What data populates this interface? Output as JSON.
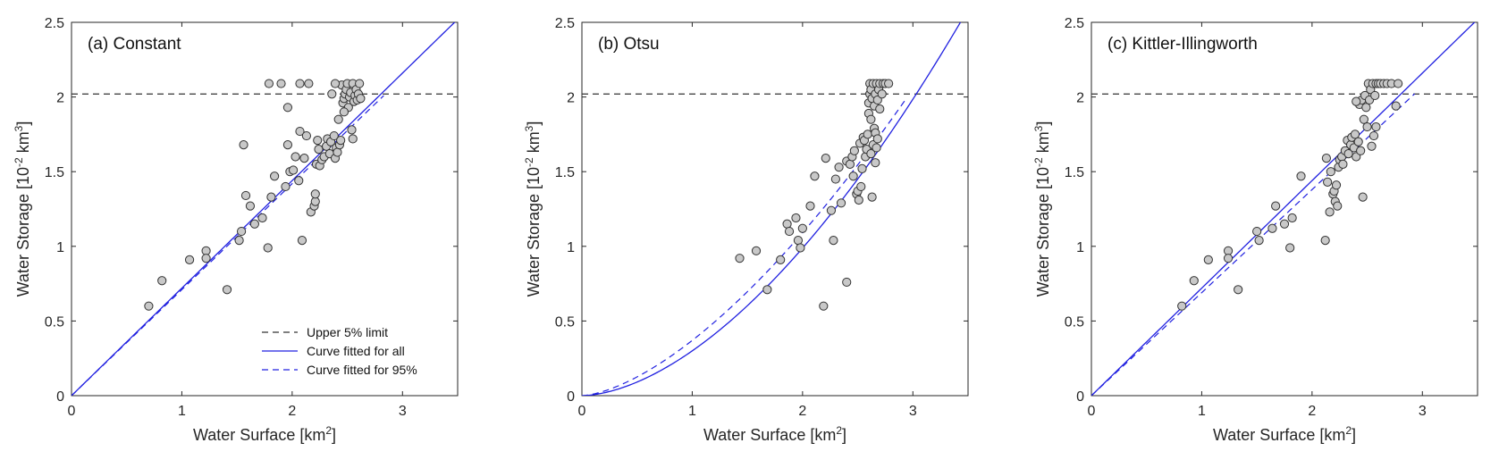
{
  "chart_data": [
    {
      "type": "scatter",
      "title": "(a) Constant",
      "xlabel": "Water Surface [km",
      "xlabel_sup": "2",
      "xlabel_end": "]",
      "ylabel": "Water Storage [10",
      "ylabel_sup": "-2",
      "ylabel_mid": " km",
      "ylabel_sup2": "3",
      "ylabel_end": "]",
      "xlim": [
        0,
        3.5
      ],
      "ylim": [
        0,
        2.5
      ],
      "xticks": [
        0,
        1,
        2,
        3
      ],
      "xtick_labels": [
        "0",
        "1",
        "2",
        "3"
      ],
      "yticks": [
        0,
        0.5,
        1,
        1.5,
        2,
        2.5
      ],
      "ytick_labels": [
        "0",
        "0.5",
        "1",
        "1.5",
        "2",
        "2.5"
      ],
      "upper_limit": 2.02,
      "fit_all": {
        "a": 0.72,
        "b": 1.0
      },
      "fit_95": {
        "a": 0.71,
        "b": 1.0,
        "xmax": 2.83
      },
      "points": [
        [
          0.7,
          0.6
        ],
        [
          0.82,
          0.77
        ],
        [
          1.07,
          0.91
        ],
        [
          1.22,
          0.97
        ],
        [
          1.22,
          0.92
        ],
        [
          1.41,
          0.71
        ],
        [
          1.52,
          1.04
        ],
        [
          1.54,
          1.1
        ],
        [
          1.56,
          1.68
        ],
        [
          1.58,
          1.34
        ],
        [
          1.62,
          1.27
        ],
        [
          1.66,
          1.15
        ],
        [
          1.73,
          1.19
        ],
        [
          1.78,
          0.99
        ],
        [
          1.79,
          2.09
        ],
        [
          1.81,
          1.33
        ],
        [
          1.84,
          1.47
        ],
        [
          1.9,
          2.09
        ],
        [
          1.94,
          1.4
        ],
        [
          1.96,
          1.68
        ],
        [
          1.96,
          1.93
        ],
        [
          1.98,
          1.5
        ],
        [
          2.01,
          1.51
        ],
        [
          2.03,
          1.6
        ],
        [
          2.06,
          1.44
        ],
        [
          2.07,
          1.77
        ],
        [
          2.07,
          2.09
        ],
        [
          2.09,
          1.04
        ],
        [
          2.11,
          1.59
        ],
        [
          2.13,
          1.74
        ],
        [
          2.15,
          2.09
        ],
        [
          2.17,
          1.23
        ],
        [
          2.2,
          1.27
        ],
        [
          2.21,
          1.3
        ],
        [
          2.21,
          1.35
        ],
        [
          2.22,
          1.55
        ],
        [
          2.23,
          1.71
        ],
        [
          2.24,
          1.65
        ],
        [
          2.25,
          1.54
        ],
        [
          2.27,
          1.58
        ],
        [
          2.29,
          1.6
        ],
        [
          2.31,
          1.67
        ],
        [
          2.32,
          1.72
        ],
        [
          2.34,
          1.62
        ],
        [
          2.35,
          1.7
        ],
        [
          2.36,
          2.02
        ],
        [
          2.38,
          1.74
        ],
        [
          2.39,
          1.59
        ],
        [
          2.4,
          1.66
        ],
        [
          2.41,
          1.63
        ],
        [
          2.42,
          1.85
        ],
        [
          2.43,
          1.68
        ],
        [
          2.44,
          1.71
        ],
        [
          2.45,
          2.08
        ],
        [
          2.46,
          1.96
        ],
        [
          2.47,
          1.99
        ],
        [
          2.48,
          2.02
        ],
        [
          2.49,
          2.05
        ],
        [
          2.5,
          2.09
        ],
        [
          2.51,
          1.93
        ],
        [
          2.52,
          2.0
        ],
        [
          2.53,
          2.03
        ],
        [
          2.54,
          1.78
        ],
        [
          2.55,
          2.09
        ],
        [
          2.55,
          1.72
        ],
        [
          2.56,
          1.97
        ],
        [
          2.57,
          2.01
        ],
        [
          2.58,
          2.05
        ],
        [
          2.59,
          1.98
        ],
        [
          2.6,
          2.02
        ],
        [
          2.61,
          2.09
        ],
        [
          2.62,
          1.99
        ],
        [
          2.47,
          1.9
        ],
        [
          2.39,
          2.09
        ]
      ],
      "legend": [
        "Upper 5% limit",
        "Curve fitted for all",
        "Curve fitted for 95%"
      ],
      "legend_position": "bottom-right"
    },
    {
      "type": "scatter",
      "title": "(b) Otsu",
      "xlabel": "Water Surface [km",
      "xlabel_sup": "2",
      "xlabel_end": "]",
      "ylabel": "Water Storage [10",
      "ylabel_sup": "-2",
      "ylabel_mid": " km",
      "ylabel_sup2": "3",
      "ylabel_end": "]",
      "xlim": [
        0,
        3.5
      ],
      "ylim": [
        0,
        2.5
      ],
      "xticks": [
        0,
        1,
        2,
        3
      ],
      "xtick_labels": [
        "0",
        "1",
        "2",
        "3"
      ],
      "yticks": [
        0,
        0.5,
        1,
        1.5,
        2,
        2.5
      ],
      "ytick_labels": [
        "0",
        "0.5",
        "1",
        "1.5",
        "2",
        "2.5"
      ],
      "upper_limit": 2.02,
      "fit_all": {
        "a": 0.3,
        "b": 1.72
      },
      "fit_95": {
        "a": 0.37,
        "b": 1.56,
        "xmax": 2.94
      },
      "points": [
        [
          1.43,
          0.92
        ],
        [
          1.58,
          0.97
        ],
        [
          1.68,
          0.71
        ],
        [
          1.8,
          0.91
        ],
        [
          1.86,
          1.15
        ],
        [
          1.88,
          1.1
        ],
        [
          1.94,
          1.19
        ],
        [
          1.96,
          1.04
        ],
        [
          1.98,
          0.99
        ],
        [
          2.0,
          1.12
        ],
        [
          2.07,
          1.27
        ],
        [
          2.11,
          1.47
        ],
        [
          2.19,
          0.6
        ],
        [
          2.21,
          1.59
        ],
        [
          2.26,
          1.24
        ],
        [
          2.28,
          1.04
        ],
        [
          2.3,
          1.45
        ],
        [
          2.33,
          1.53
        ],
        [
          2.35,
          1.29
        ],
        [
          2.4,
          0.76
        ],
        [
          2.4,
          1.57
        ],
        [
          2.43,
          1.55
        ],
        [
          2.45,
          1.6
        ],
        [
          2.46,
          1.47
        ],
        [
          2.47,
          1.64
        ],
        [
          2.49,
          1.35
        ],
        [
          2.5,
          1.37
        ],
        [
          2.51,
          1.31
        ],
        [
          2.52,
          1.69
        ],
        [
          2.53,
          1.4
        ],
        [
          2.54,
          1.52
        ],
        [
          2.55,
          1.73
        ],
        [
          2.56,
          1.71
        ],
        [
          2.57,
          1.6
        ],
        [
          2.58,
          1.65
        ],
        [
          2.59,
          1.75
        ],
        [
          2.6,
          1.89
        ],
        [
          2.6,
          1.96
        ],
        [
          2.61,
          2.02
        ],
        [
          2.61,
          2.09
        ],
        [
          2.62,
          1.62
        ],
        [
          2.62,
          2.05
        ],
        [
          2.63,
          1.99
        ],
        [
          2.63,
          1.33
        ],
        [
          2.64,
          1.68
        ],
        [
          2.64,
          2.09
        ],
        [
          2.65,
          1.79
        ],
        [
          2.65,
          1.94
        ],
        [
          2.66,
          1.76
        ],
        [
          2.66,
          2.02
        ],
        [
          2.67,
          1.66
        ],
        [
          2.67,
          2.09
        ],
        [
          2.68,
          1.72
        ],
        [
          2.68,
          1.98
        ],
        [
          2.69,
          2.05
        ],
        [
          2.7,
          1.92
        ],
        [
          2.7,
          2.09
        ],
        [
          2.72,
          2.02
        ],
        [
          2.73,
          2.09
        ],
        [
          2.75,
          2.09
        ],
        [
          2.78,
          2.09
        ],
        [
          2.62,
          1.85
        ],
        [
          2.66,
          1.56
        ]
      ]
    },
    {
      "type": "scatter",
      "title": "(c) Kittler-Illingworth",
      "xlabel": "Water Surface [km",
      "xlabel_sup": "2",
      "xlabel_end": "]",
      "ylabel": "Water Storage [10",
      "ylabel_sup": "-2",
      "ylabel_mid": " km",
      "ylabel_sup2": "3",
      "ylabel_end": "]",
      "xlim": [
        0,
        3.5
      ],
      "ylim": [
        0,
        2.5
      ],
      "xticks": [
        0,
        1,
        2,
        3
      ],
      "xtick_labels": [
        "0",
        "1",
        "2",
        "3"
      ],
      "yticks": [
        0,
        0.5,
        1,
        1.5,
        2,
        2.5
      ],
      "ytick_labels": [
        "0",
        "0.5",
        "1",
        "1.5",
        "2",
        "2.5"
      ],
      "upper_limit": 2.02,
      "fit_all": {
        "a": 0.72,
        "b": 1.0
      },
      "fit_95": {
        "a": 0.69,
        "b": 1.0,
        "xmax": 2.93
      },
      "points": [
        [
          0.82,
          0.6
        ],
        [
          0.93,
          0.77
        ],
        [
          1.06,
          0.91
        ],
        [
          1.24,
          0.97
        ],
        [
          1.24,
          0.92
        ],
        [
          1.33,
          0.71
        ],
        [
          1.5,
          1.1
        ],
        [
          1.52,
          1.04
        ],
        [
          1.64,
          1.12
        ],
        [
          1.67,
          1.27
        ],
        [
          1.75,
          1.15
        ],
        [
          1.8,
          0.99
        ],
        [
          1.82,
          1.19
        ],
        [
          1.9,
          1.47
        ],
        [
          2.12,
          1.04
        ],
        [
          2.13,
          1.59
        ],
        [
          2.14,
          1.43
        ],
        [
          2.16,
          1.23
        ],
        [
          2.17,
          1.5
        ],
        [
          2.19,
          1.35
        ],
        [
          2.2,
          1.37
        ],
        [
          2.21,
          1.3
        ],
        [
          2.22,
          1.41
        ],
        [
          2.23,
          1.27
        ],
        [
          2.24,
          1.53
        ],
        [
          2.25,
          1.58
        ],
        [
          2.27,
          1.6
        ],
        [
          2.28,
          1.55
        ],
        [
          2.3,
          1.64
        ],
        [
          2.32,
          1.71
        ],
        [
          2.33,
          1.62
        ],
        [
          2.35,
          1.68
        ],
        [
          2.36,
          1.73
        ],
        [
          2.38,
          1.66
        ],
        [
          2.39,
          1.75
        ],
        [
          2.4,
          1.6
        ],
        [
          2.42,
          1.7
        ],
        [
          2.43,
          1.95
        ],
        [
          2.44,
          1.64
        ],
        [
          2.45,
          1.98
        ],
        [
          2.46,
          1.33
        ],
        [
          2.47,
          1.85
        ],
        [
          2.48,
          2.01
        ],
        [
          2.49,
          1.93
        ],
        [
          2.5,
          1.8
        ],
        [
          2.51,
          2.09
        ],
        [
          2.52,
          1.98
        ],
        [
          2.53,
          2.05
        ],
        [
          2.54,
          1.67
        ],
        [
          2.55,
          2.09
        ],
        [
          2.56,
          1.74
        ],
        [
          2.57,
          2.01
        ],
        [
          2.58,
          2.09
        ],
        [
          2.6,
          2.09
        ],
        [
          2.62,
          2.09
        ],
        [
          2.65,
          2.09
        ],
        [
          2.68,
          2.09
        ],
        [
          2.72,
          2.09
        ],
        [
          2.76,
          1.94
        ],
        [
          2.78,
          2.09
        ],
        [
          2.4,
          1.97
        ],
        [
          2.58,
          1.8
        ]
      ]
    }
  ]
}
